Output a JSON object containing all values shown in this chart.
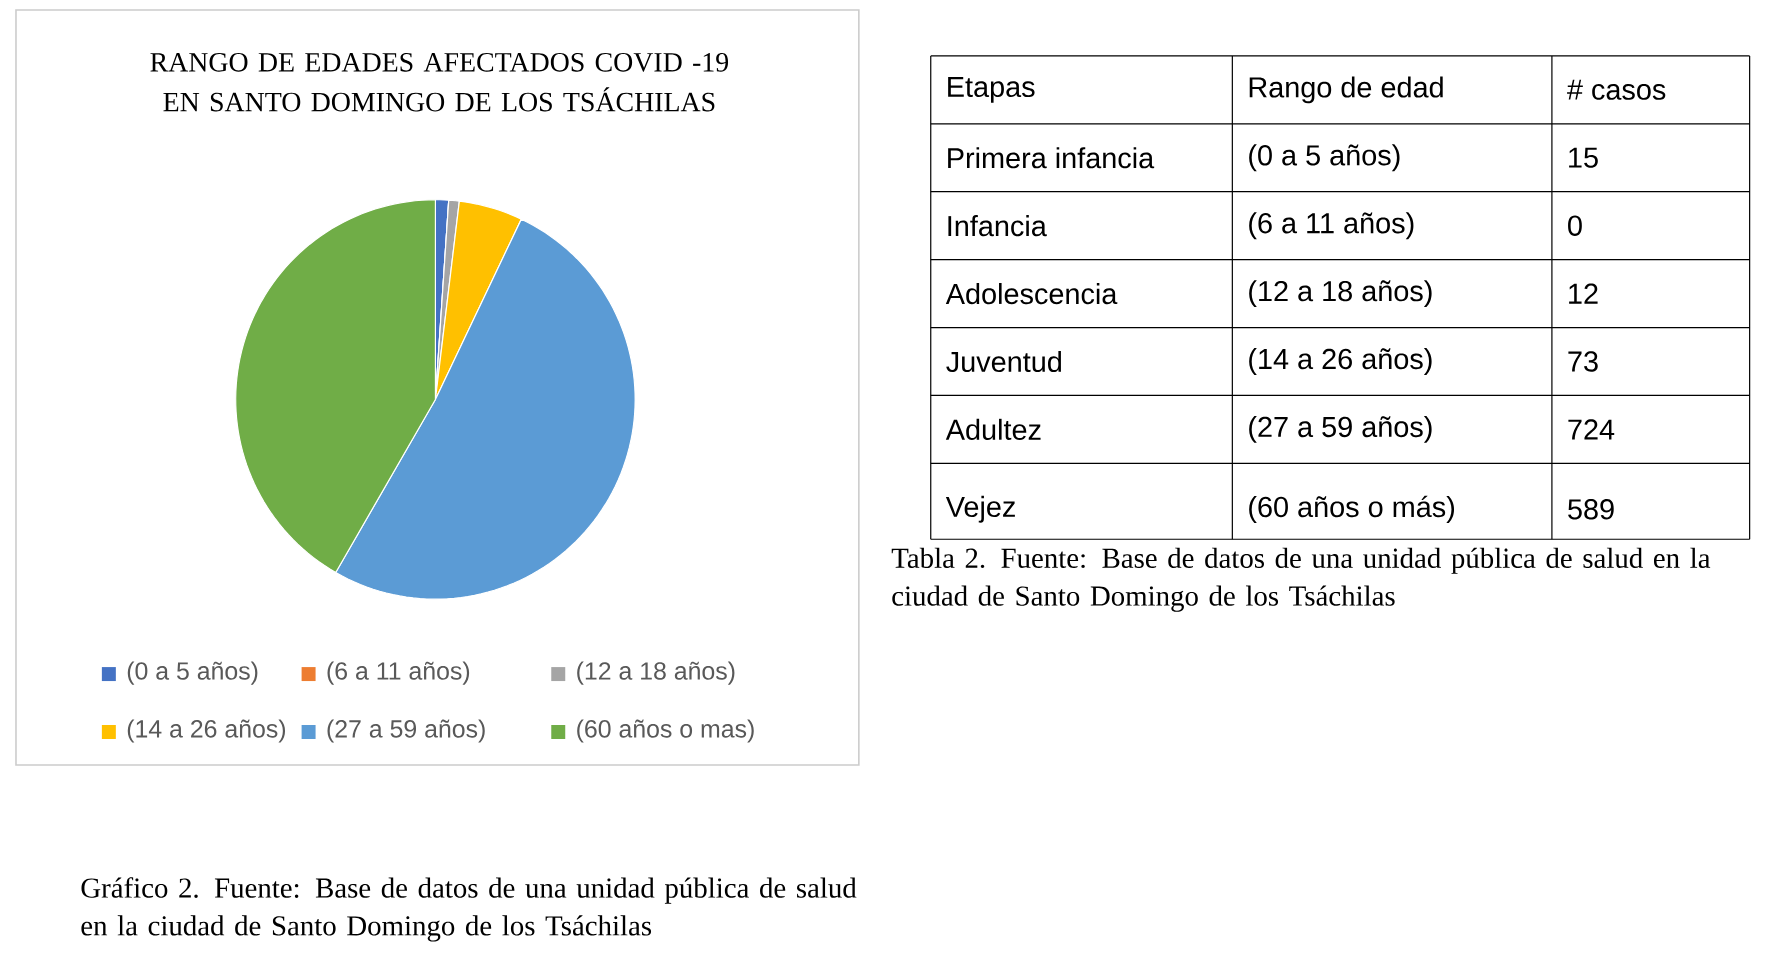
{
  "chart_data": {
    "type": "pie",
    "title": "RANGO DE EDADES AFECTADOS COVID -19 EN SANTO DOMINGO DE LOS TSÁCHILAS",
    "categories": [
      "(0 a 5 años)",
      "(6 a 11 años)",
      "(12 a 18 años)",
      "(14 a 26 años)",
      "(27 a 59 años)",
      "(60 años o mas)"
    ],
    "values": [
      15,
      0,
      12,
      73,
      724,
      589
    ],
    "colors": [
      "#4472c4",
      "#ed7d31",
      "#a5a5a5",
      "#ffc000",
      "#5b9bd5",
      "#70ad47"
    ],
    "legend": "bottom",
    "annotations": [
      "Etapas",
      "Rango de edad",
      "# casos",
      "Primera infancia",
      "Infancia",
      "Adolescencia",
      "Juventud",
      "Adultez",
      "Vejez",
      "(0 a 5 años)",
      "(6 a 11 años)",
      "(12 a 18 años)",
      "(14 a 26 años)",
      "(27 a 59 años)",
      "(60 años o más)",
      "15",
      "0",
      "12",
      "73",
      "724",
      "589",
      "Tabla 2. Fuente: Base de datos de una unidad pública de salud en la ciudad de Santo Domingo de los Tsáchilas",
      "Gráfico 2. Fuente: Base de datos de una unidad pública de salud en la ciudad de Santo Domingo de los Tsáchilas"
    ]
  }
}
